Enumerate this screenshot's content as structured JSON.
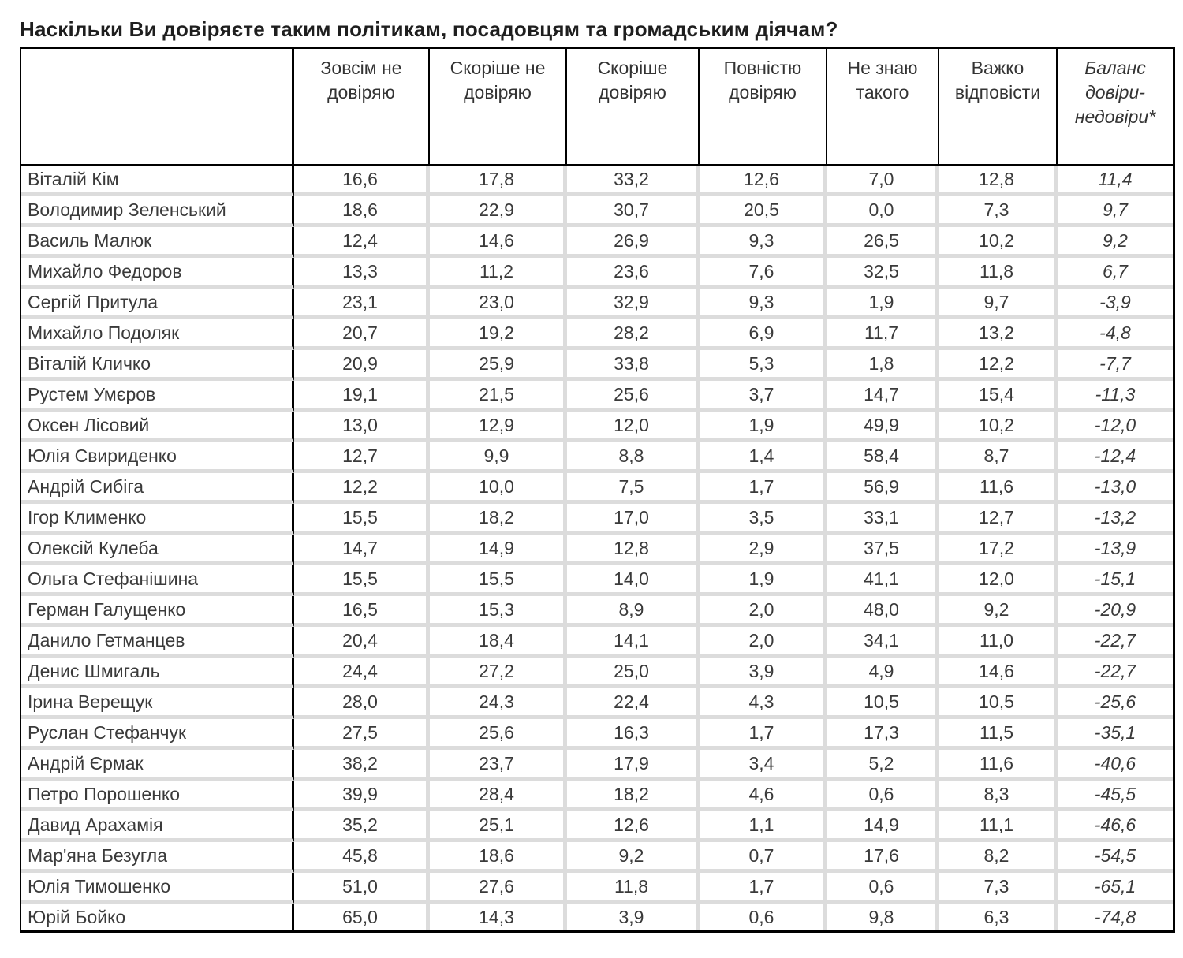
{
  "page": {
    "title": "Наскільки Ви довіряєте таким політикам, посадовцям та громадським діячам?"
  },
  "colors": {
    "border_black": "#000000",
    "grid_gap_gray": "#dcdcdc",
    "cell_background": "#ffffff",
    "text": "#3a3a3a",
    "title_text": "#1e1e1e"
  },
  "chart_data": {
    "type": "table",
    "title": "Наскільки Ви довіряєте таким політикам, посадовцям та громадським діячам?",
    "decimal_separator": ",",
    "columns": [
      "",
      "Зовсім не довіряю",
      "Скоріше не довіряю",
      "Скоріше довіряю",
      "Повністю довіряю",
      "Не знаю такого",
      "Важко відповісти",
      "Баланс довіри-недовіри*"
    ],
    "rows": [
      {
        "name": "Віталій Кім",
        "values": [
          16.6,
          17.8,
          33.2,
          12.6,
          7.0,
          12.8,
          11.4
        ]
      },
      {
        "name": "Володимир Зеленський",
        "values": [
          18.6,
          22.9,
          30.7,
          20.5,
          0.0,
          7.3,
          9.7
        ]
      },
      {
        "name": "Василь Малюк",
        "values": [
          12.4,
          14.6,
          26.9,
          9.3,
          26.5,
          10.2,
          9.2
        ]
      },
      {
        "name": "Михайло Федоров",
        "values": [
          13.3,
          11.2,
          23.6,
          7.6,
          32.5,
          11.8,
          6.7
        ]
      },
      {
        "name": "Сергій Притула",
        "values": [
          23.1,
          23.0,
          32.9,
          9.3,
          1.9,
          9.7,
          -3.9
        ]
      },
      {
        "name": "Михайло Подоляк",
        "values": [
          20.7,
          19.2,
          28.2,
          6.9,
          11.7,
          13.2,
          -4.8
        ]
      },
      {
        "name": "Віталій Кличко",
        "values": [
          20.9,
          25.9,
          33.8,
          5.3,
          1.8,
          12.2,
          -7.7
        ]
      },
      {
        "name": "Рустем Умєров",
        "values": [
          19.1,
          21.5,
          25.6,
          3.7,
          14.7,
          15.4,
          -11.3
        ]
      },
      {
        "name": "Оксен Лісовий",
        "values": [
          13.0,
          12.9,
          12.0,
          1.9,
          49.9,
          10.2,
          -12.0
        ]
      },
      {
        "name": "Юлія Свириденко",
        "values": [
          12.7,
          9.9,
          8.8,
          1.4,
          58.4,
          8.7,
          -12.4
        ]
      },
      {
        "name": "Андрій Сибіга",
        "values": [
          12.2,
          10.0,
          7.5,
          1.7,
          56.9,
          11.6,
          -13.0
        ]
      },
      {
        "name": "Ігор Клименко",
        "values": [
          15.5,
          18.2,
          17.0,
          3.5,
          33.1,
          12.7,
          -13.2
        ]
      },
      {
        "name": "Олексій Кулеба",
        "values": [
          14.7,
          14.9,
          12.8,
          2.9,
          37.5,
          17.2,
          -13.9
        ]
      },
      {
        "name": "Ольга Стефанішина",
        "values": [
          15.5,
          15.5,
          14.0,
          1.9,
          41.1,
          12.0,
          -15.1
        ]
      },
      {
        "name": "Герман Галущенко",
        "values": [
          16.5,
          15.3,
          8.9,
          2.0,
          48.0,
          9.2,
          -20.9
        ]
      },
      {
        "name": "Данило Гетманцев",
        "values": [
          20.4,
          18.4,
          14.1,
          2.0,
          34.1,
          11.0,
          -22.7
        ]
      },
      {
        "name": "Денис Шмигаль",
        "values": [
          24.4,
          27.2,
          25.0,
          3.9,
          4.9,
          14.6,
          -22.7
        ]
      },
      {
        "name": "Ірина Верещук",
        "values": [
          28.0,
          24.3,
          22.4,
          4.3,
          10.5,
          10.5,
          -25.6
        ]
      },
      {
        "name": "Руслан Стефанчук",
        "values": [
          27.5,
          25.6,
          16.3,
          1.7,
          17.3,
          11.5,
          -35.1
        ]
      },
      {
        "name": "Андрій Єрмак",
        "values": [
          38.2,
          23.7,
          17.9,
          3.4,
          5.2,
          11.6,
          -40.6
        ]
      },
      {
        "name": "Петро Порошенко",
        "values": [
          39.9,
          28.4,
          18.2,
          4.6,
          0.6,
          8.3,
          -45.5
        ]
      },
      {
        "name": "Давид Арахамія",
        "values": [
          35.2,
          25.1,
          12.6,
          1.1,
          14.9,
          11.1,
          -46.6
        ]
      },
      {
        "name": "Мар'яна Безугла",
        "values": [
          45.8,
          18.6,
          9.2,
          0.7,
          17.6,
          8.2,
          -54.5
        ]
      },
      {
        "name": "Юлія Тимошенко",
        "values": [
          51.0,
          27.6,
          11.8,
          1.7,
          0.6,
          7.3,
          -65.1
        ]
      },
      {
        "name": "Юрій Бойко",
        "values": [
          65.0,
          14.3,
          3.9,
          0.6,
          9.8,
          6.3,
          -74.8
        ]
      }
    ]
  }
}
